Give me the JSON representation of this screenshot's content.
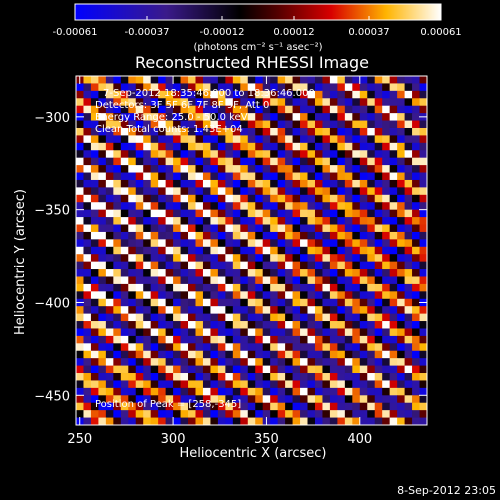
{
  "chart_data": {
    "type": "heatmap",
    "title": "Reconstructed RHESSI Image",
    "xlabel": "Heliocentric X (arcsec)",
    "ylabel": "Heliocentric Y (arcsec)",
    "xlim": [
      248,
      436
    ],
    "ylim": [
      -466,
      -278
    ],
    "xticks": [
      250,
      300,
      350,
      400
    ],
    "yticks": [
      -300,
      -350,
      -400,
      -450
    ],
    "colorbar": {
      "colormap": "red-temperature (blue to black to red to yellow to white)",
      "min": -0.00061,
      "max": 0.00061,
      "tick_values": [
        -0.00061,
        -0.00037,
        -0.00012,
        0.00012,
        0.00037,
        0.00061
      ],
      "tick_labels": [
        "-0.00061",
        "-0.00037",
        "-0.00012",
        "0.00012",
        "0.00037",
        "0.00061"
      ],
      "unit_label": "(photons cm⁻² s⁻¹ asec⁻²)"
    },
    "pattern": {
      "description": "diagonal stripe fringes running from upper-left to lower-right",
      "dominant_values": "alternating positive (yellow/white) and negative (blue/black) bands"
    },
    "annotations": {
      "time_range": "7-Sep-2012 18:35:46.000 to 18:36:46.000",
      "detectors": "Detectors: 3F 5F 6F 7F 8F 9F, Att 0",
      "energy_range": "Energy Range: 25.0 - 50.0 keV",
      "algorithm": "Clean     Total counts: 1.43E+04",
      "peak": "Position of Peak = [258,-345]"
    },
    "timestamp": "8-Sep-2012 23:05"
  }
}
